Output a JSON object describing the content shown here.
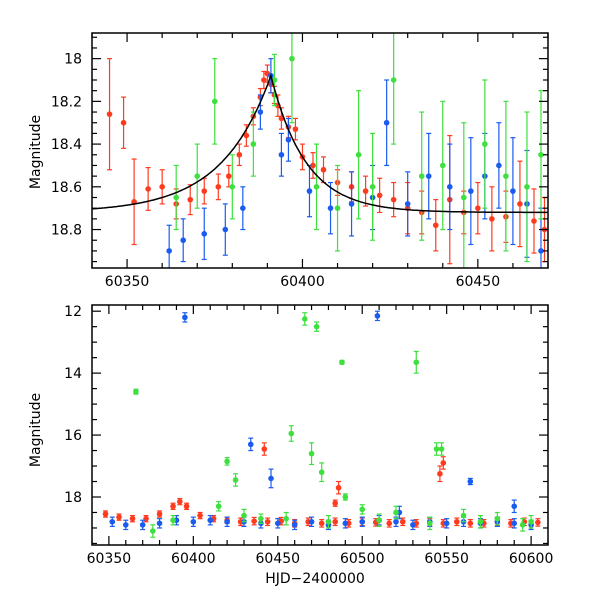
{
  "chart_data": [
    {
      "id": "top",
      "type": "scatter",
      "title": "",
      "xlabel": "",
      "ylabel": "Magnitude",
      "xlim": [
        60340,
        60470
      ],
      "ylim": [
        18.98,
        17.88
      ],
      "y_inverted": true,
      "grid": false,
      "legend": "none",
      "x_ticks": [
        60350,
        60400,
        60450
      ],
      "y_ticks": [
        18,
        18.2,
        18.4,
        18.6,
        18.8
      ],
      "y_tick_labels": [
        "18",
        "18.2",
        "18.4",
        "18.6",
        "18.8"
      ],
      "series": [
        {
          "color": "#ff3b1f",
          "x": [
            60345,
            60349,
            60352,
            60356,
            60360,
            60364,
            60368,
            60372,
            60376,
            60379,
            60382,
            60384,
            60386,
            60388,
            60389,
            60390,
            60391,
            60392,
            60393,
            60394,
            60396,
            60398,
            60400,
            60403,
            60406,
            60410,
            60414,
            60418,
            60422,
            60426,
            60430,
            60434,
            60438,
            60442,
            60446,
            60450,
            60454,
            60458,
            60462,
            60466,
            60469
          ],
          "y": [
            18.26,
            18.3,
            18.67,
            18.61,
            18.6,
            18.68,
            18.66,
            18.62,
            18.6,
            18.55,
            18.45,
            18.36,
            18.27,
            18.18,
            18.1,
            18.07,
            18.12,
            18.17,
            18.22,
            18.28,
            18.32,
            18.33,
            18.46,
            18.5,
            18.52,
            18.58,
            18.6,
            18.62,
            18.64,
            18.66,
            18.7,
            18.72,
            18.78,
            18.66,
            18.72,
            18.7,
            18.75,
            18.74,
            18.68,
            18.76,
            18.8
          ],
          "err": [
            0.26,
            0.12,
            0.2,
            0.1,
            0.08,
            0.07,
            0.07,
            0.06,
            0.06,
            0.05,
            0.05,
            0.05,
            0.04,
            0.04,
            0.04,
            0.04,
            0.04,
            0.04,
            0.05,
            0.05,
            0.05,
            0.05,
            0.06,
            0.06,
            0.06,
            0.06,
            0.07,
            0.07,
            0.08,
            0.08,
            0.12,
            0.1,
            0.12,
            0.3,
            0.1,
            0.12,
            0.15,
            0.12,
            0.2,
            0.15,
            0.15
          ]
        },
        {
          "color": "#1a5cf0",
          "x": [
            60362,
            60366,
            60372,
            60378,
            60383,
            60388,
            60391,
            60394,
            60396,
            60402,
            60408,
            60414,
            60420,
            60424,
            60430,
            60436,
            60442,
            60448,
            60452,
            60456,
            60460,
            60464,
            60468
          ],
          "y": [
            18.9,
            18.85,
            18.82,
            18.8,
            18.7,
            18.25,
            18.08,
            18.45,
            18.38,
            18.62,
            18.7,
            18.68,
            18.65,
            18.3,
            18.68,
            18.55,
            18.6,
            18.62,
            18.55,
            18.5,
            18.62,
            18.68,
            18.9
          ],
          "err": [
            0.12,
            0.1,
            0.12,
            0.12,
            0.1,
            0.08,
            0.08,
            0.1,
            0.1,
            0.12,
            0.12,
            0.15,
            0.15,
            0.2,
            0.15,
            0.2,
            0.2,
            0.25,
            0.2,
            0.2,
            0.25,
            0.25,
            0.2
          ]
        },
        {
          "color": "#3ee03e",
          "x": [
            60364,
            60370,
            60375,
            60380,
            60386,
            60392,
            60397,
            60404,
            60410,
            60416,
            60420,
            60426,
            60434,
            60440,
            60446,
            60452,
            60458,
            60464,
            60468
          ],
          "y": [
            18.65,
            18.55,
            18.2,
            18.6,
            18.4,
            18.1,
            18.0,
            18.6,
            18.7,
            18.45,
            18.6,
            18.1,
            18.55,
            18.5,
            18.65,
            18.4,
            18.55,
            18.6,
            18.45
          ],
          "err": [
            0.15,
            0.15,
            0.2,
            0.15,
            0.15,
            0.12,
            0.3,
            0.2,
            0.2,
            0.3,
            0.25,
            0.3,
            0.3,
            0.3,
            0.35,
            0.3,
            0.35,
            0.35,
            0.3
          ]
        }
      ],
      "model_curve": {
        "color": "#000000",
        "peak_x": 60391,
        "peak_y": 18.08,
        "base_y": 18.72
      }
    },
    {
      "id": "bottom",
      "type": "scatter",
      "title": "",
      "xlabel": "HJD−2400000",
      "ylabel": "Magnitude",
      "xlim": [
        60340,
        60610
      ],
      "ylim": [
        19.55,
        11.8
      ],
      "y_inverted": true,
      "grid": false,
      "legend": "none",
      "x_ticks": [
        60350,
        60400,
        60450,
        60500,
        60550,
        60600
      ],
      "y_ticks": [
        12,
        14,
        16,
        18
      ],
      "y_tick_labels": [
        "12",
        "14",
        "16",
        "18"
      ],
      "series": [
        {
          "color": "#ff3b1f",
          "x": [
            60348,
            60356,
            60364,
            60372,
            60380,
            60388,
            60392,
            60396,
            60404,
            60412,
            60420,
            60428,
            60436,
            60444,
            60452,
            60460,
            60468,
            60476,
            60484,
            60492,
            60500,
            60508,
            60516,
            60524,
            60532,
            60540,
            60548,
            60556,
            60564,
            60572,
            60580,
            60588,
            60596,
            60604,
            60442,
            60486,
            60484,
            60546,
            60548
          ],
          "y": [
            18.55,
            18.65,
            18.7,
            18.7,
            18.55,
            18.3,
            18.15,
            18.3,
            18.6,
            18.7,
            18.75,
            18.8,
            18.78,
            18.8,
            18.78,
            18.85,
            18.8,
            18.85,
            18.8,
            18.85,
            18.8,
            18.82,
            18.85,
            18.8,
            18.85,
            18.82,
            18.85,
            18.8,
            18.85,
            18.85,
            18.8,
            18.85,
            18.8,
            18.82,
            16.45,
            17.7,
            18.2,
            17.25,
            16.9
          ],
          "err": [
            0.1,
            0.1,
            0.1,
            0.1,
            0.1,
            0.1,
            0.1,
            0.1,
            0.1,
            0.1,
            0.1,
            0.12,
            0.12,
            0.12,
            0.12,
            0.12,
            0.12,
            0.12,
            0.12,
            0.12,
            0.12,
            0.12,
            0.12,
            0.12,
            0.12,
            0.12,
            0.12,
            0.12,
            0.12,
            0.12,
            0.12,
            0.12,
            0.12,
            0.12,
            0.2,
            0.2,
            0.1,
            0.25,
            0.2
          ]
        },
        {
          "color": "#1a5cf0",
          "x": [
            60352,
            60360,
            60370,
            60380,
            60390,
            60400,
            60410,
            60420,
            60430,
            60440,
            60450,
            60460,
            60470,
            60480,
            60490,
            60500,
            60510,
            60520,
            60530,
            60540,
            60550,
            60560,
            60570,
            60580,
            60590,
            60600,
            60395,
            60509,
            60434,
            60446,
            60564,
            60522,
            60590
          ],
          "y": [
            18.8,
            18.9,
            18.9,
            18.85,
            18.75,
            18.8,
            18.75,
            18.8,
            18.8,
            18.85,
            18.85,
            18.9,
            18.8,
            18.9,
            18.85,
            18.8,
            18.75,
            18.8,
            18.9,
            18.8,
            18.85,
            18.8,
            18.85,
            18.8,
            18.85,
            18.9,
            12.2,
            12.15,
            16.3,
            17.4,
            17.5,
            18.5,
            18.3
          ],
          "err": [
            0.15,
            0.15,
            0.15,
            0.15,
            0.15,
            0.15,
            0.15,
            0.15,
            0.15,
            0.15,
            0.15,
            0.15,
            0.15,
            0.15,
            0.15,
            0.15,
            0.15,
            0.15,
            0.15,
            0.15,
            0.15,
            0.15,
            0.15,
            0.15,
            0.15,
            0.15,
            0.15,
            0.15,
            0.2,
            0.3,
            0.1,
            0.2,
            0.2
          ]
        },
        {
          "color": "#3ee03e",
          "x": [
            60366,
            60466,
            60473,
            60488,
            60532,
            60420,
            60425,
            60458,
            60470,
            60476,
            60544,
            60547,
            60415,
            60440,
            60490,
            60500,
            60520,
            60560,
            60580,
            60600,
            60376,
            60388,
            60430,
            60455,
            60480,
            60510,
            60540,
            60570,
            60595
          ],
          "y": [
            14.6,
            12.25,
            12.5,
            13.65,
            13.65,
            16.85,
            17.45,
            15.95,
            16.6,
            17.2,
            16.45,
            16.45,
            18.3,
            18.7,
            18.0,
            18.4,
            18.5,
            18.6,
            18.7,
            18.8,
            19.1,
            18.75,
            18.6,
            18.7,
            18.8,
            18.75,
            18.85,
            18.8,
            18.9
          ],
          "err": [
            0.08,
            0.2,
            0.15,
            0.06,
            0.35,
            0.12,
            0.2,
            0.25,
            0.35,
            0.3,
            0.2,
            0.2,
            0.15,
            0.15,
            0.1,
            0.15,
            0.2,
            0.2,
            0.2,
            0.2,
            0.2,
            0.15,
            0.2,
            0.2,
            0.2,
            0.2,
            0.2,
            0.2,
            0.2
          ]
        }
      ]
    }
  ]
}
